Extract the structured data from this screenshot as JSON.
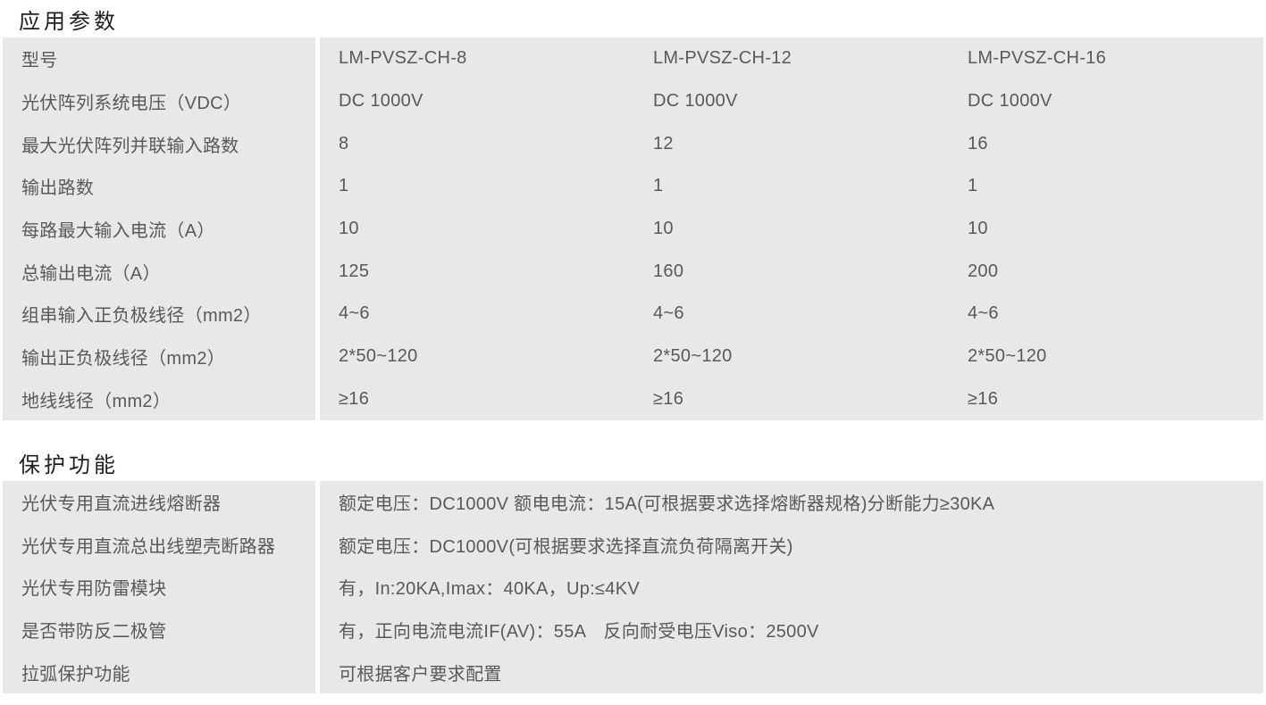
{
  "colors": {
    "table_bg": "#e8e8e8",
    "text": "#595959",
    "title": "#1f1f1f",
    "page_bg": "#ffffff"
  },
  "sections": [
    {
      "title": "应用参数",
      "rows": [
        {
          "label": "型号",
          "values": [
            "LM-PVSZ-CH-8",
            "LM-PVSZ-CH-12",
            "LM-PVSZ-CH-16"
          ]
        },
        {
          "label": "光伏阵列系统电压（VDC）",
          "values": [
            "DC 1000V",
            "DC 1000V",
            "DC 1000V"
          ]
        },
        {
          "label": "最大光伏阵列并联输入路数",
          "values": [
            "8",
            "12",
            "16"
          ]
        },
        {
          "label": "输出路数",
          "values": [
            "1",
            "1",
            "1"
          ]
        },
        {
          "label": "每路最大输入电流（A）",
          "values": [
            "10",
            "10",
            "10"
          ]
        },
        {
          "label": "总输出电流（A）",
          "values": [
            "125",
            "160",
            "200"
          ]
        },
        {
          "label": "组串输入正负极线径（mm2）",
          "values": [
            "4~6",
            "4~6",
            "4~6"
          ]
        },
        {
          "label": "输出正负极线径（mm2）",
          "values": [
            "2*50~120",
            "2*50~120",
            "2*50~120"
          ]
        },
        {
          "label": "地线线径（mm2）",
          "values": [
            "≥16",
            "≥16",
            "≥16"
          ]
        }
      ]
    },
    {
      "title": "保护功能",
      "rows": [
        {
          "label": "光伏专用直流进线熔断器",
          "values": [
            "额定电压：DC1000V 额电电流：15A(可根据要求选择熔断器规格)分断能力≥30KA"
          ]
        },
        {
          "label": "光伏专用直流总出线塑壳断路器",
          "values": [
            "额定电压：DC1000V(可根据要求选择直流负荷隔离开关)"
          ]
        },
        {
          "label": "光伏专用防雷模块",
          "values": [
            "有，In:20KA,Imax：40KA，Up:≤4KV"
          ]
        },
        {
          "label": "是否带防反二极管",
          "values": [
            "有，正向电流电流IF(AV)：55A　反向耐受电压Viso：2500V"
          ]
        },
        {
          "label": "拉弧保护功能",
          "values": [
            "可根据客户要求配置"
          ]
        }
      ]
    }
  ]
}
